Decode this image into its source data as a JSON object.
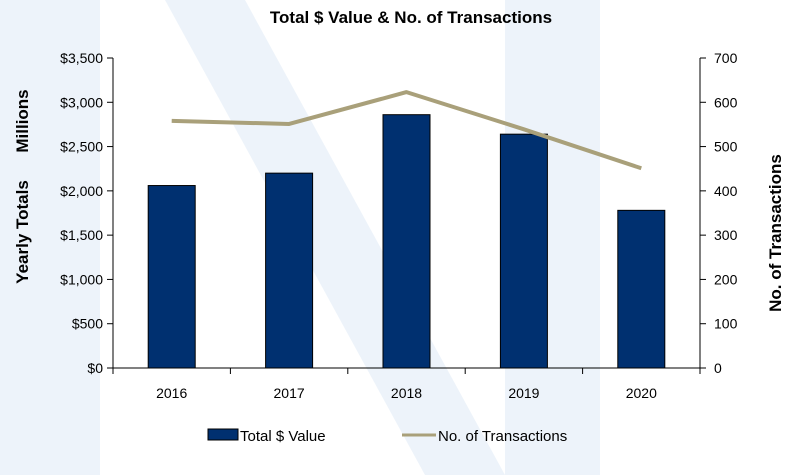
{
  "chart_data": {
    "type": "bar",
    "title": "Total $ Value & No. of Transactions",
    "categories": [
      "2016",
      "2017",
      "2018",
      "2019",
      "2020"
    ],
    "series": [
      {
        "name": "Total $ Value",
        "type": "bar",
        "axis": "left",
        "values": [
          2060,
          2200,
          2860,
          2640,
          1780
        ]
      },
      {
        "name": "No. of Transactions",
        "type": "line",
        "axis": "right",
        "values": [
          558,
          551,
          623,
          539,
          451
        ]
      }
    ],
    "ylabel_left_top": "Millions",
    "ylabel_left": "Yearly Totals",
    "ylabel_right": "No. of Transactions",
    "ylim_left": [
      0,
      3500
    ],
    "ylim_right": [
      0,
      700
    ],
    "left_ticks": [
      "$0",
      "$500",
      "$1,000",
      "$1,500",
      "$2,000",
      "$2,500",
      "$3,000",
      "$3,500"
    ],
    "right_ticks": [
      "0",
      "100",
      "200",
      "300",
      "400",
      "500",
      "600",
      "700"
    ],
    "grid": false,
    "legend_position": "bottom",
    "colors": {
      "bar": "#003070",
      "line": "#a9a07a",
      "watermark": "#dfe9f5"
    }
  }
}
